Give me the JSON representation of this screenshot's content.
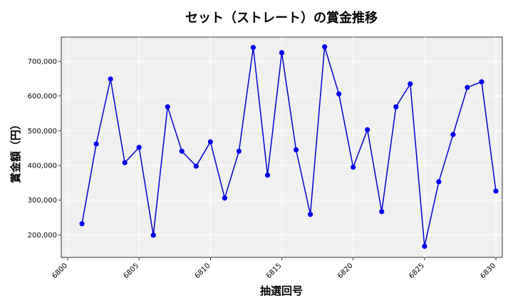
{
  "chart_data": {
    "type": "line",
    "title": "セット（ストレート）の賞金推移",
    "xlabel": "抽選回号",
    "ylabel": "賞金額（円）",
    "xlim": [
      6799.55,
      6830.45
    ],
    "ylim": [
      135000,
      770000
    ],
    "xticks": [
      6800,
      6805,
      6810,
      6815,
      6820,
      6825,
      6830
    ],
    "xtick_labels": [
      "6800",
      "6805",
      "6810",
      "6815",
      "6820",
      "6825",
      "6830"
    ],
    "yticks": [
      200000,
      300000,
      400000,
      500000,
      600000,
      700000
    ],
    "ytick_labels": [
      "200,000",
      "300,000",
      "400,000",
      "500,000",
      "600,000",
      "700,000"
    ],
    "grid": true,
    "legend": "none",
    "series": [
      {
        "color": "#0000cc",
        "marker_color": "#0000ee",
        "x": [
          6801,
          6802,
          6803,
          6804,
          6805,
          6806,
          6807,
          6808,
          6809,
          6810,
          6811,
          6812,
          6813,
          6814,
          6815,
          6816,
          6817,
          6818,
          6819,
          6820,
          6821,
          6822,
          6823,
          6824,
          6825,
          6826,
          6827,
          6828,
          6829,
          6830
        ],
        "values": [
          232000,
          462000,
          649000,
          408000,
          452000,
          199000,
          569000,
          441000,
          398000,
          468000,
          306000,
          441000,
          740000,
          372000,
          725000,
          445000,
          259000,
          742000,
          606000,
          395000,
          503000,
          267000,
          569000,
          635000,
          167000,
          353000,
          489000,
          625000,
          641000,
          326000
        ]
      }
    ]
  }
}
